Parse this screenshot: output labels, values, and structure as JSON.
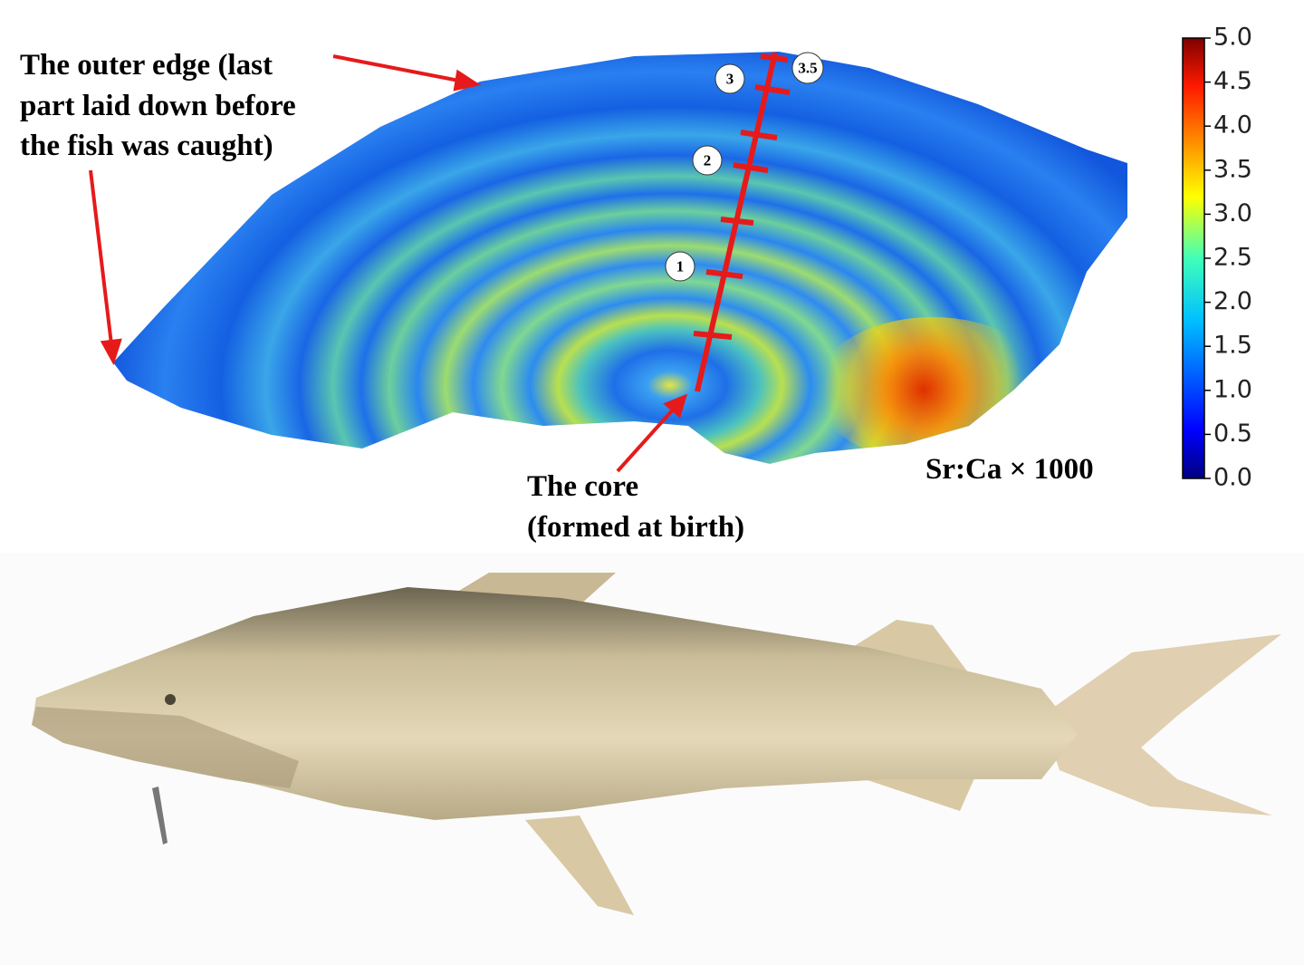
{
  "annotations": {
    "outer_edge": [
      "The outer edge (last",
      "part laid down before",
      "the fish was caught)"
    ],
    "core": [
      "The core",
      "(formed at birth)"
    ]
  },
  "age_marks": [
    "1",
    "2",
    "3",
    "3.5"
  ],
  "colorbar": {
    "label": "Sr:Ca × 1000",
    "lim": [
      0,
      5
    ],
    "ticks": [
      {
        "value": 0,
        "label": "0.0"
      },
      {
        "value": 0.5,
        "label": "0.5"
      },
      {
        "value": 1,
        "label": "1.0"
      },
      {
        "value": 1.5,
        "label": "1.5"
      },
      {
        "value": 2,
        "label": "2.0"
      },
      {
        "value": 2.5,
        "label": "2.5"
      },
      {
        "value": 3,
        "label": "3.0"
      },
      {
        "value": 3.5,
        "label": "3.5"
      },
      {
        "value": 4,
        "label": "4.0"
      },
      {
        "value": 4.5,
        "label": "4.5"
      },
      {
        "value": 5,
        "label": "5.0"
      }
    ]
  }
}
